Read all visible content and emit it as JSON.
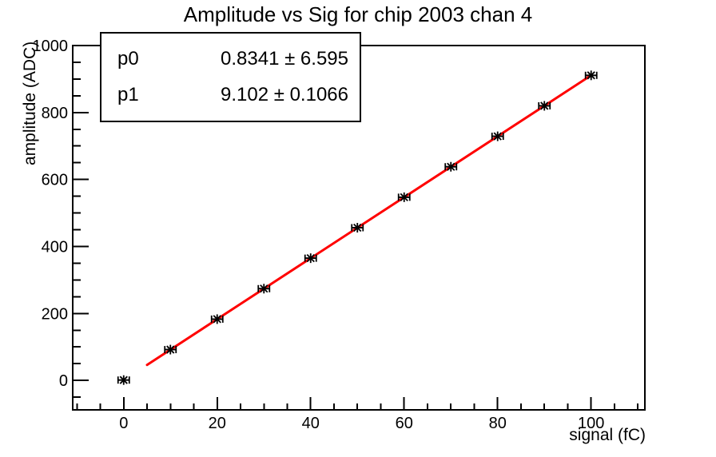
{
  "window": {
    "background": "#ffffff"
  },
  "chart_data": {
    "type": "scatter",
    "title": "Amplitude vs Sig for chip 2003 chan 4",
    "xlabel": "signal (fC)",
    "ylabel": "amplitude (ADC)",
    "x": [
      0,
      10,
      20,
      30,
      40,
      50,
      60,
      70,
      80,
      90,
      100
    ],
    "y": [
      1,
      92,
      183,
      274,
      365,
      456,
      547,
      638,
      729,
      820,
      911
    ],
    "xerr": 1.2,
    "xlim": [
      -10.9,
      111.5
    ],
    "ylim": [
      -88,
      1000
    ],
    "x_major_ticks": [
      0,
      20,
      40,
      60,
      80,
      100
    ],
    "x_minor_step": 5,
    "x_major_step": 20,
    "y_major_ticks": [
      0,
      200,
      400,
      600,
      800,
      1000
    ],
    "y_minor_step": 50,
    "y_major_step": 200,
    "grid": false,
    "marker": "asterisk-with-x-error-bars",
    "marker_color": "#000000",
    "axis_color": "#000000",
    "fit": {
      "name": "linear",
      "p0": 0.8341,
      "p1": 9.102,
      "x_range": [
        5,
        100
      ],
      "color": "#ff0000"
    }
  },
  "stats": {
    "rows": [
      {
        "name": "p0",
        "value": "0.8341 ± 6.595"
      },
      {
        "name": "p1",
        "value": "9.102 ± 0.1066"
      }
    ]
  }
}
